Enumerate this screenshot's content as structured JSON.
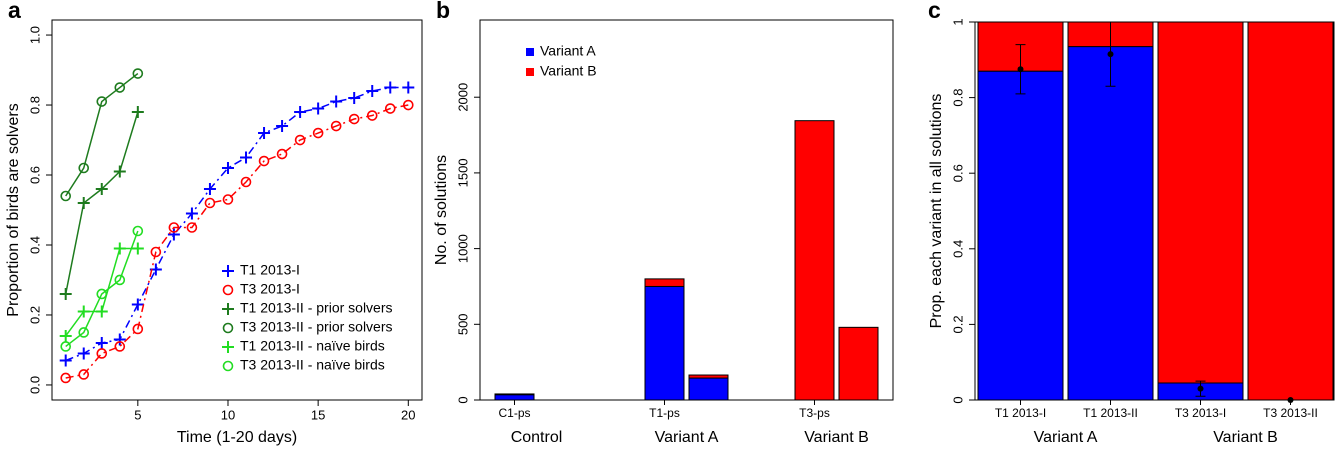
{
  "chart_data": [
    {
      "type": "line",
      "panel_label": "a",
      "xlabel": "Time (1-20 days)",
      "ylabel": "Proportion of birds are solvers",
      "xlim": [
        0.24,
        20.76
      ],
      "ylim": [
        -0.043,
        1.043
      ],
      "xticks": [
        5,
        10,
        15,
        20
      ],
      "yticks": [
        {
          "value": 0,
          "label": "0.0"
        },
        0.2,
        0.4,
        0.6,
        0.8,
        {
          "value": 1,
          "label": "1.0"
        }
      ],
      "legend": "bottom-right",
      "series": [
        {
          "name": "T1 2013-I",
          "color": "#0000ff",
          "line_style": "dashdot",
          "marker": "plus",
          "x": [
            1,
            2,
            3,
            4,
            5,
            6,
            7,
            8,
            9,
            10,
            11,
            12,
            13,
            14,
            15,
            16,
            17,
            18,
            19,
            20
          ],
          "values": [
            0.07,
            0.09,
            0.12,
            0.13,
            0.23,
            0.33,
            0.43,
            0.49,
            0.56,
            0.62,
            0.65,
            0.72,
            0.74,
            0.78,
            0.79,
            0.81,
            0.82,
            0.84,
            0.85,
            0.85
          ]
        },
        {
          "name": "T3 2013-I",
          "color": "#ff0000",
          "line_style": "dashdot",
          "marker": "circle",
          "x": [
            1,
            2,
            3,
            4,
            5,
            6,
            7,
            8,
            9,
            10,
            11,
            12,
            13,
            14,
            15,
            16,
            17,
            18,
            19,
            20
          ],
          "values": [
            0.02,
            0.03,
            0.09,
            0.11,
            0.16,
            0.38,
            0.45,
            0.45,
            0.52,
            0.53,
            0.58,
            0.64,
            0.66,
            0.7,
            0.72,
            0.74,
            0.76,
            0.77,
            0.79,
            0.8
          ]
        },
        {
          "name": "T1 2013-II - prior solvers",
          "color": "#1e7b1e",
          "line_style": "solid",
          "marker": "plus",
          "x": [
            1,
            2,
            3,
            4,
            5
          ],
          "values": [
            0.26,
            0.52,
            0.56,
            0.61,
            0.78
          ]
        },
        {
          "name": "T3 2013-II - prior solvers",
          "color": "#1e7b1e",
          "line_style": "solid",
          "marker": "circle",
          "x": [
            1,
            2,
            3,
            4,
            5
          ],
          "values": [
            0.54,
            0.62,
            0.81,
            0.85,
            0.89
          ]
        },
        {
          "name": "T1 2013-II - naïve birds",
          "color": "#22dd22",
          "line_style": "solid",
          "marker": "plus",
          "x": [
            1,
            2,
            3,
            4,
            5
          ],
          "values": [
            0.14,
            0.21,
            0.21,
            0.39,
            0.39
          ]
        },
        {
          "name": "T3 2013-II - naïve birds",
          "color": "#22dd22",
          "line_style": "solid",
          "marker": "circle",
          "x": [
            1,
            2,
            3,
            4,
            5
          ],
          "values": [
            0.11,
            0.15,
            0.26,
            0.3,
            0.44
          ]
        }
      ]
    },
    {
      "type": "bar",
      "panel_label": "b",
      "ylabel": "No. of solutions",
      "stacked": true,
      "ylim": [
        0,
        2510
      ],
      "yticks": [
        0,
        500,
        1000,
        1500,
        2000
      ],
      "legend": "top-left",
      "categories": [
        "C1-ps",
        null,
        "T1-ps",
        null,
        "T3-ps",
        null
      ],
      "groups": [
        "Control",
        "Variant A",
        "Variant B"
      ],
      "series": [
        {
          "name": "Variant A",
          "color": "#0000ff",
          "values": [
            35,
            null,
            750,
            145,
            0,
            0
          ]
        },
        {
          "name": "Variant B",
          "color": "#ff0000",
          "values": [
            5,
            null,
            50,
            20,
            1845,
            480
          ]
        }
      ]
    },
    {
      "type": "bar",
      "panel_label": "c",
      "ylabel": "Prop. each variant in all solutions",
      "stacked": true,
      "ylim": [
        0,
        1
      ],
      "yticks": [
        0,
        0.2,
        0.4,
        0.6,
        0.8,
        1
      ],
      "categories": [
        "T1 2013-I",
        "T1 2013-II",
        "T3 2013-I",
        "T3 2013-II"
      ],
      "groups": [
        "Variant A",
        "Variant B"
      ],
      "series": [
        {
          "color": "#0000ff",
          "values": [
            0.87,
            0.935,
            0.045,
            0
          ]
        },
        {
          "color": "#ff0000",
          "values": [
            0.13,
            0.065,
            0.955,
            1
          ]
        }
      ],
      "points": {
        "color": "#000000",
        "values": [
          0.875,
          0.915,
          0.03,
          0
        ],
        "errors": [
          0.065,
          0.085,
          0.02,
          0
        ]
      }
    }
  ]
}
